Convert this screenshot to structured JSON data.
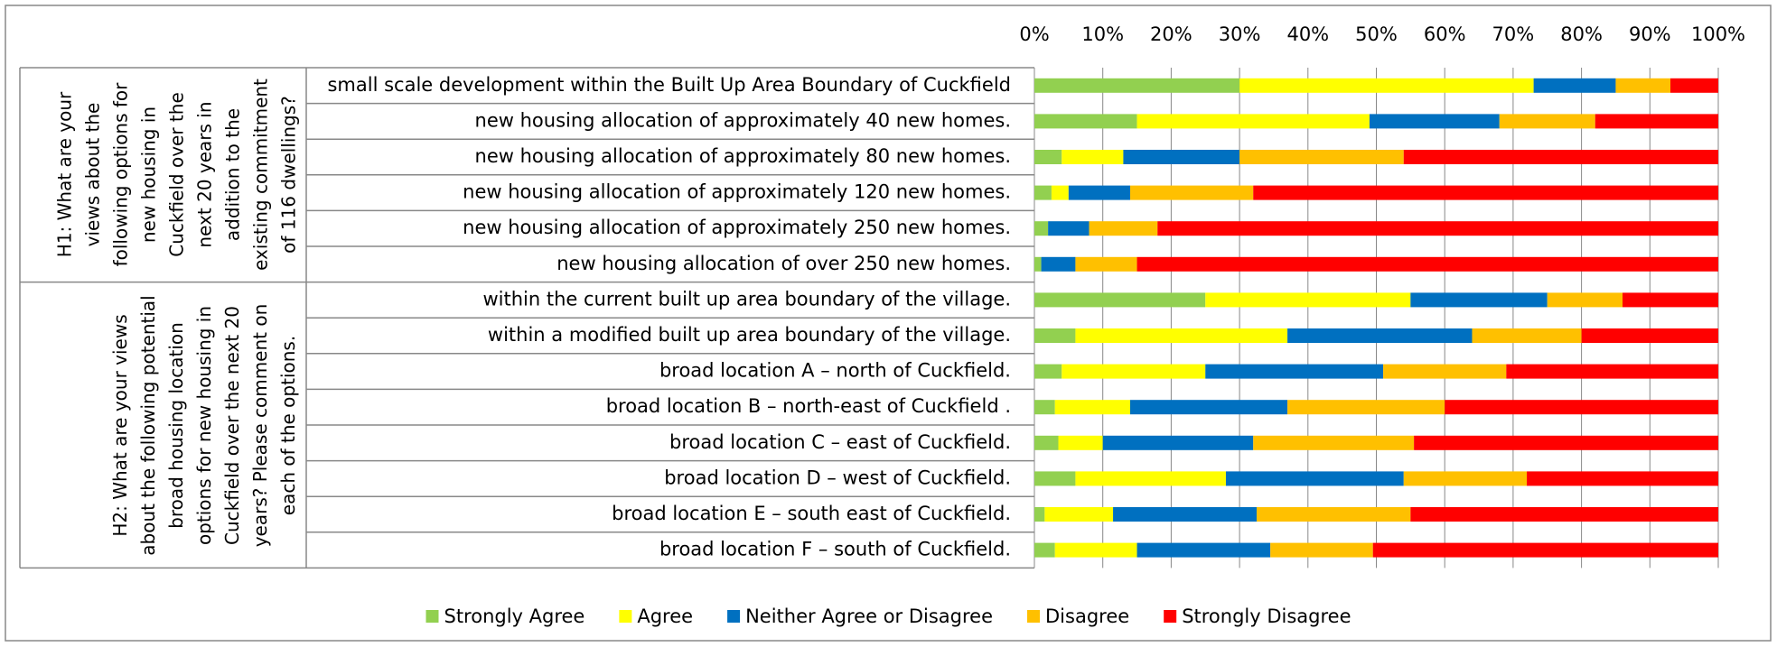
{
  "chart_data": {
    "type": "stacked_barh",
    "groups": [
      {
        "label": "H1: What are your views about the following options for new housing in Cuckfield over the next 20 years in addition to the existing commitment of 116 dwellings?",
        "rows": 6
      },
      {
        "label": "H2: What are your views about the following potential broad housing location options for new housing in Cuckfield over the next 20 years? Please comment on each of the options.",
        "rows": 8
      }
    ],
    "categories": [
      "small scale development within the Built Up Area Boundary of Cuckfield",
      "new housing allocation of approximately 40 new homes.",
      "new housing allocation of approximately 80 new homes.",
      "new housing allocation of approximately 120 new homes.",
      "new housing allocation of approximately 250 new homes.",
      "new housing allocation of over 250 new homes.",
      "within the current built up area boundary of the village.",
      "within a modified built up area boundary of the village.",
      "broad location A – north of Cuckfield.",
      "broad location B – north-east of Cuckfield .",
      "broad location C – east of Cuckfield.",
      "broad location D – west of Cuckfield.",
      "broad location E – south east of Cuckfield.",
      "broad location F – south of Cuckfield."
    ],
    "series": [
      {
        "name": "Strongly Agree",
        "color": "#92d050",
        "values": [
          30,
          15,
          4,
          2.5,
          2,
          1,
          25,
          6,
          4,
          3,
          3.5,
          6,
          1.5,
          3
        ]
      },
      {
        "name": "Agree",
        "color": "#ffff00",
        "values": [
          43,
          34,
          9,
          2.5,
          0,
          0,
          30,
          31,
          21,
          11,
          6.5,
          22,
          10,
          12
        ]
      },
      {
        "name": "Neither Agree or Disagree",
        "color": "#0070c0",
        "values": [
          12,
          19,
          17,
          9,
          6,
          5,
          20,
          27,
          26,
          23,
          22,
          26,
          21,
          19.5
        ]
      },
      {
        "name": "Disagree",
        "color": "#ffc000",
        "values": [
          8,
          14,
          24,
          18,
          10,
          9,
          11,
          16,
          18,
          23,
          23.5,
          18,
          22.5,
          15
        ]
      },
      {
        "name": "Strongly Disagree",
        "color": "#ff0000",
        "values": [
          7,
          18,
          46,
          68,
          82,
          85,
          14,
          20,
          31,
          40,
          44.5,
          28,
          45,
          50.5
        ]
      }
    ],
    "xlim": [
      0,
      100
    ],
    "xticks": [
      {
        "value": 0,
        "label": "0%"
      },
      {
        "value": 10,
        "label": "10%"
      },
      {
        "value": 20,
        "label": "20%"
      },
      {
        "value": 30,
        "label": "30%"
      },
      {
        "value": 40,
        "label": "40%"
      },
      {
        "value": 50,
        "label": "50%"
      },
      {
        "value": 60,
        "label": "60%"
      },
      {
        "value": 70,
        "label": "70%"
      },
      {
        "value": 80,
        "label": "80%"
      },
      {
        "value": 90,
        "label": "90%"
      },
      {
        "value": 100,
        "label": "100%"
      }
    ],
    "grid": true,
    "legend": "bottom"
  }
}
